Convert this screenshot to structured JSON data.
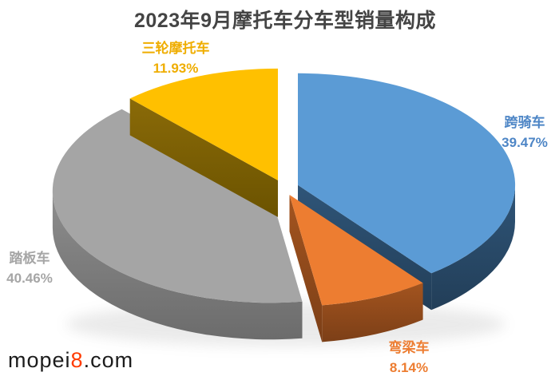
{
  "chart_data": {
    "type": "pie",
    "style": "3d-exploded",
    "title": "2023年9月摩托车分车型销量构成",
    "start_angle_deg": 0,
    "direction": "clockwise",
    "legend_position": "none",
    "labels_outside": true,
    "slices": [
      {
        "label": "跨骑车",
        "value_pct": 39.47,
        "display": "39.47%",
        "color": "#5B9BD5",
        "wall_top": "#2F5578",
        "wall_bottom": "#223E58",
        "label_color": "#4E86C6"
      },
      {
        "label": "弯梁车",
        "value_pct": 8.14,
        "display": "8.14%",
        "color": "#ED7D31",
        "wall_top": "#A3541F",
        "wall_bottom": "#7C3F17",
        "label_color": "#ED7D31"
      },
      {
        "label": "踏板车",
        "value_pct": 40.46,
        "display": "40.46%",
        "color": "#A5A5A5",
        "wall_top": "#8D8D8D",
        "wall_bottom": "#6C6C6C",
        "label_color": "#A6A6A6"
      },
      {
        "label": "三轮摩托车",
        "value_pct": 11.93,
        "display": "11.93%",
        "color": "#FFC000",
        "wall_top": "#8A6A08",
        "wall_bottom": "#6B5300",
        "label_color": "#EFAD00"
      }
    ]
  },
  "watermark": {
    "prefix": "mopei",
    "highlight": "8",
    "suffix": ".com",
    "highlight_color": "#FF3B00"
  }
}
